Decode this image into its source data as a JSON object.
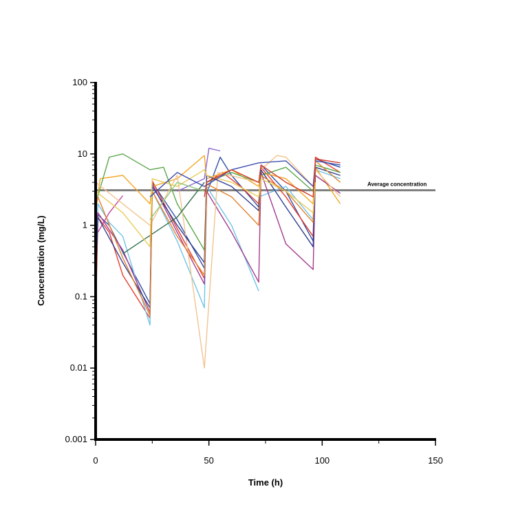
{
  "chart_data": {
    "type": "line",
    "title": "",
    "xlabel": "Time (h)",
    "ylabel": "Concentration (mg/L)",
    "xlim": [
      0,
      150
    ],
    "ylim": [
      0.001,
      100
    ],
    "yscale": "log",
    "grid": false,
    "legend": "none",
    "x_ticks": [
      0,
      50,
      100,
      150
    ],
    "x_tick_labels": [
      "0",
      "50",
      "100",
      "150"
    ],
    "y_ticks": [
      0.001,
      0.01,
      0.1,
      1,
      10,
      100
    ],
    "y_tick_labels": [
      "0.001",
      "0.01",
      "0.1",
      "1",
      "10",
      "100"
    ],
    "reference_line": {
      "label": "Average concentration",
      "y": 3.1,
      "x_end": 150,
      "color": "#7f7f7f"
    },
    "series": [
      {
        "color": "#2e4fa3",
        "points": [
          [
            0,
            0.08
          ],
          [
            1,
            1.4
          ],
          [
            6,
            1.0
          ],
          [
            12,
            0.42
          ],
          [
            24,
            0.08
          ],
          [
            25,
            4.0
          ],
          [
            36,
            1.2
          ],
          [
            48,
            0.25
          ],
          [
            49,
            2.8
          ],
          [
            55,
            9.0
          ],
          [
            60,
            5.0
          ],
          [
            72,
            1.8
          ],
          [
            73,
            7.0
          ],
          [
            84,
            3.0
          ],
          [
            96,
            0.6
          ],
          [
            97,
            8.5
          ],
          [
            108,
            6.5
          ]
        ]
      },
      {
        "color": "#e53b2c",
        "points": [
          [
            0,
            0.05
          ],
          [
            1,
            1.3
          ],
          [
            6,
            0.8
          ],
          [
            12,
            0.2
          ],
          [
            24,
            0.05
          ],
          [
            25,
            4.2
          ],
          [
            36,
            0.9
          ],
          [
            48,
            0.18
          ],
          [
            49,
            4.0
          ],
          [
            56,
            5.5
          ],
          [
            64,
            3.5
          ],
          [
            72,
            2.0
          ],
          [
            73,
            6.5
          ],
          [
            84,
            2.5
          ],
          [
            96,
            0.7
          ],
          [
            97,
            9.0
          ],
          [
            108,
            5.5
          ]
        ]
      },
      {
        "color": "#6ec4e8",
        "points": [
          [
            0,
            0.3
          ],
          [
            1,
            2.0
          ],
          [
            6,
            1.1
          ],
          [
            12,
            0.7
          ],
          [
            24,
            0.04
          ],
          [
            25,
            3.0
          ],
          [
            36,
            0.6
          ],
          [
            48,
            0.07
          ],
          [
            49,
            3.5
          ],
          [
            60,
            1.0
          ],
          [
            72,
            0.12
          ]
        ]
      },
      {
        "color": "#6ec4e8",
        "points": [
          [
            72,
            2.5
          ],
          [
            84,
            3.5
          ],
          [
            96,
            1.2
          ],
          [
            97,
            6.0
          ],
          [
            108,
            4.5
          ]
        ]
      },
      {
        "color": "#f5a623",
        "points": [
          [
            0,
            1.5
          ],
          [
            2,
            4.5
          ],
          [
            12,
            5.0
          ],
          [
            24,
            2.0
          ],
          [
            25,
            3.5
          ],
          [
            36,
            4.5
          ],
          [
            48,
            9.5
          ],
          [
            49,
            4.5
          ],
          [
            60,
            6.0
          ],
          [
            72,
            3.5
          ],
          [
            73,
            5.5
          ],
          [
            84,
            4.5
          ],
          [
            96,
            2.0
          ],
          [
            97,
            6.5
          ],
          [
            108,
            2.0
          ]
        ]
      },
      {
        "color": "#5aa64a",
        "points": [
          [
            0,
            2.0
          ],
          [
            6,
            9.0
          ],
          [
            12,
            10.0
          ],
          [
            24,
            6.0
          ],
          [
            30,
            6.5
          ],
          [
            36,
            2.0
          ],
          [
            48,
            0.45
          ],
          [
            49,
            4.0
          ],
          [
            60,
            5.5
          ],
          [
            72,
            4.0
          ],
          [
            73,
            5.0
          ],
          [
            84,
            6.5
          ],
          [
            96,
            3.0
          ],
          [
            97,
            7.0
          ],
          [
            108,
            5.5
          ]
        ]
      },
      {
        "color": "#a23b8d",
        "points": [
          [
            0,
            1.0
          ],
          [
            1,
            1.5
          ],
          [
            12,
            0.45
          ],
          [
            24,
            0.06
          ],
          [
            25,
            3.8
          ],
          [
            36,
            0.8
          ],
          [
            48,
            0.15
          ],
          [
            49,
            3.0
          ],
          [
            60,
            0.8
          ],
          [
            72,
            0.16
          ],
          [
            73,
            5.5
          ],
          [
            84,
            0.55
          ],
          [
            96,
            0.24
          ],
          [
            97,
            5.0
          ],
          [
            108,
            2.8
          ]
        ]
      },
      {
        "color": "#c23f97",
        "points": [
          [
            1,
            0.8
          ],
          [
            6,
            1.5
          ],
          [
            12,
            2.6
          ]
        ]
      },
      {
        "color": "#f2c38f",
        "points": [
          [
            0,
            4.0
          ],
          [
            12,
            2.0
          ],
          [
            24,
            1.0
          ],
          [
            36,
            5.0
          ],
          [
            48,
            0.01
          ],
          [
            54,
            5.5
          ],
          [
            72,
            4.0
          ],
          [
            73,
            6.0
          ],
          [
            80,
            9.5
          ],
          [
            84,
            9.0
          ],
          [
            96,
            3.5
          ],
          [
            97,
            6.0
          ],
          [
            108,
            2.5
          ]
        ]
      },
      {
        "color": "#8a66c9",
        "points": [
          [
            36,
            3.0
          ],
          [
            48,
            4.5
          ],
          [
            50,
            12.0
          ],
          [
            55,
            11.0
          ]
        ]
      },
      {
        "color": "#2d3d8f",
        "points": [
          [
            0,
            0.15
          ],
          [
            1,
            1.3
          ],
          [
            12,
            0.3
          ],
          [
            24,
            0.07
          ],
          [
            25,
            3.5
          ],
          [
            36,
            1.0
          ],
          [
            48,
            0.3
          ],
          [
            49,
            5.0
          ],
          [
            60,
            3.5
          ],
          [
            72,
            1.6
          ],
          [
            73,
            6.0
          ],
          [
            84,
            1.8
          ],
          [
            96,
            0.5
          ],
          [
            97,
            6.5
          ],
          [
            108,
            5.0
          ]
        ]
      },
      {
        "color": "#2f6e4a",
        "points": [
          [
            12,
            0.4
          ],
          [
            36,
            1.3
          ],
          [
            48,
            4.0
          ]
        ]
      },
      {
        "color": "#e0802a",
        "points": [
          [
            0,
            1.8
          ],
          [
            1,
            2.5
          ],
          [
            12,
            0.35
          ],
          [
            24,
            0.055
          ],
          [
            25,
            3.0
          ],
          [
            36,
            0.7
          ],
          [
            48,
            0.2
          ],
          [
            49,
            3.8
          ],
          [
            60,
            2.5
          ],
          [
            72,
            1.0
          ],
          [
            73,
            5.0
          ],
          [
            84,
            3.0
          ],
          [
            96,
            1.1
          ],
          [
            97,
            8.0
          ],
          [
            108,
            4.0
          ]
        ]
      },
      {
        "color": "#e8cc5a",
        "points": [
          [
            0,
            3.0
          ],
          [
            12,
            1.5
          ],
          [
            24,
            0.5
          ],
          [
            25,
            4.5
          ],
          [
            36,
            3.5
          ],
          [
            48,
            6.0
          ],
          [
            49,
            5.0
          ],
          [
            60,
            4.0
          ],
          [
            72,
            2.5
          ],
          [
            73,
            4.5
          ],
          [
            84,
            3.0
          ],
          [
            96,
            1.5
          ],
          [
            97,
            4.0
          ]
        ]
      },
      {
        "color": "#3b4db0",
        "points": [
          [
            24,
            2.5
          ],
          [
            36,
            5.5
          ],
          [
            48,
            3.5
          ],
          [
            60,
            6.0
          ],
          [
            72,
            7.5
          ],
          [
            84,
            8.0
          ],
          [
            96,
            3.5
          ],
          [
            97,
            8.0
          ],
          [
            108,
            7.0
          ]
        ]
      },
      {
        "color": "#d13a2a",
        "points": [
          [
            48,
            2.5
          ],
          [
            49,
            4.0
          ],
          [
            60,
            6.0
          ],
          [
            72,
            4.0
          ],
          [
            73,
            7.0
          ],
          [
            84,
            4.0
          ],
          [
            96,
            2.5
          ],
          [
            97,
            8.5
          ],
          [
            108,
            7.5
          ]
        ]
      },
      {
        "color": "#8cc97a",
        "points": [
          [
            24,
            1.2
          ],
          [
            36,
            4.0
          ],
          [
            48,
            3.0
          ]
        ]
      }
    ]
  }
}
